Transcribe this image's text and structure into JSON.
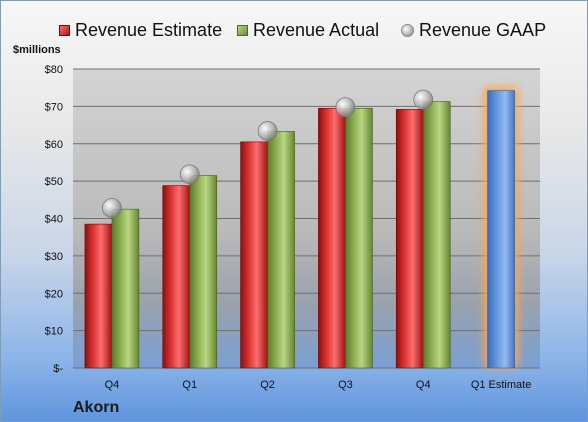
{
  "chart_data": {
    "type": "bar",
    "ylabel": "$millions",
    "company": "Akorn",
    "categories": [
      "Q4",
      "Q1",
      "Q2",
      "Q3",
      "Q4",
      "Q1 Estimate"
    ],
    "ylim": [
      0,
      80
    ],
    "yticks": [
      "$-",
      "$10",
      "$20",
      "$30",
      "$40",
      "$50",
      "$60",
      "$70",
      "$80"
    ],
    "grid": true,
    "legend_position": "top",
    "series": [
      {
        "name": "Revenue Estimate",
        "values": [
          38.5,
          48.8,
          60.5,
          69.5,
          69.2,
          null
        ],
        "color": "#c62020"
      },
      {
        "name": "Revenue Actual",
        "values": [
          42.5,
          51.5,
          63.3,
          69.5,
          71.3,
          null
        ],
        "color": "#86a84a"
      },
      {
        "name": "Revenue GAAP",
        "values": [
          42.8,
          51.8,
          63.4,
          69.8,
          71.8,
          null
        ],
        "color": "#bcbcbc"
      }
    ],
    "estimate": {
      "category": "Q1 Estimate",
      "value": 74.2,
      "color": "#5b8fd6",
      "highlight": "#ffa54a"
    }
  }
}
